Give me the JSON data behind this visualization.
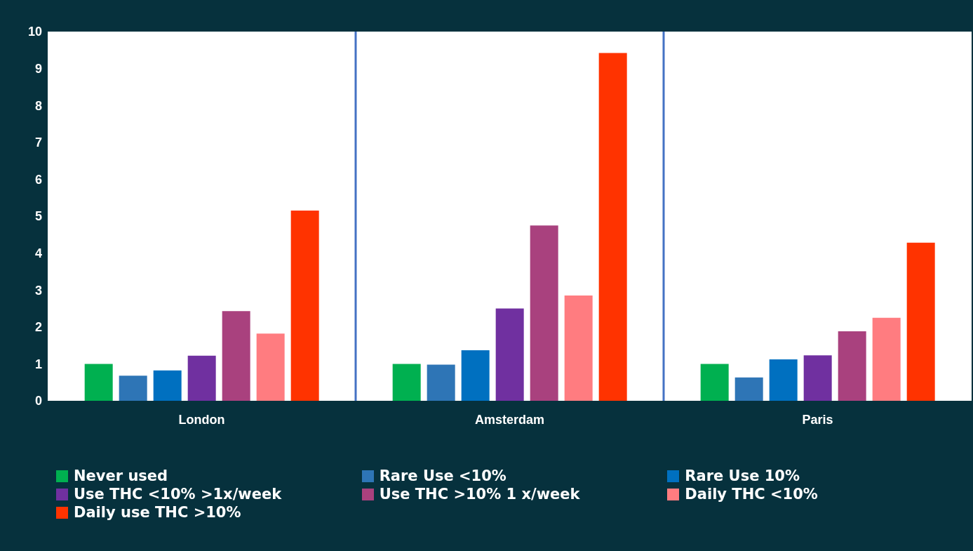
{
  "chart_data": {
    "type": "bar",
    "categories": [
      "London",
      "Amsterdam",
      "Paris"
    ],
    "series": [
      {
        "name": "Never used",
        "color": "#00b050",
        "values": [
          1.0,
          1.0,
          1.0
        ]
      },
      {
        "name": "Rare Use <10%",
        "color": "#2e75b6",
        "values": [
          0.68,
          0.98,
          0.63
        ]
      },
      {
        "name": "Rare Use 10%",
        "color": "#0070c0",
        "values": [
          0.82,
          1.37,
          1.12
        ]
      },
      {
        "name": "Use THC <10% >1x/week",
        "color": "#7030a0",
        "values": [
          1.22,
          2.5,
          1.23
        ]
      },
      {
        "name": "Use THC >10% 1 x/week",
        "color": "#a9417e",
        "values": [
          2.43,
          4.75,
          1.88
        ]
      },
      {
        "name": "Daily THC <10%",
        "color": "#ff7c80",
        "values": [
          1.82,
          2.85,
          2.25
        ]
      },
      {
        "name": "Daily use THC >10%",
        "color": "#ff3300",
        "values": [
          5.15,
          9.42,
          4.28
        ]
      }
    ],
    "ylim": [
      0,
      10
    ],
    "yticks": [
      0,
      1,
      2,
      3,
      4,
      5,
      6,
      7,
      8,
      9,
      10
    ],
    "legend": "bottom"
  }
}
